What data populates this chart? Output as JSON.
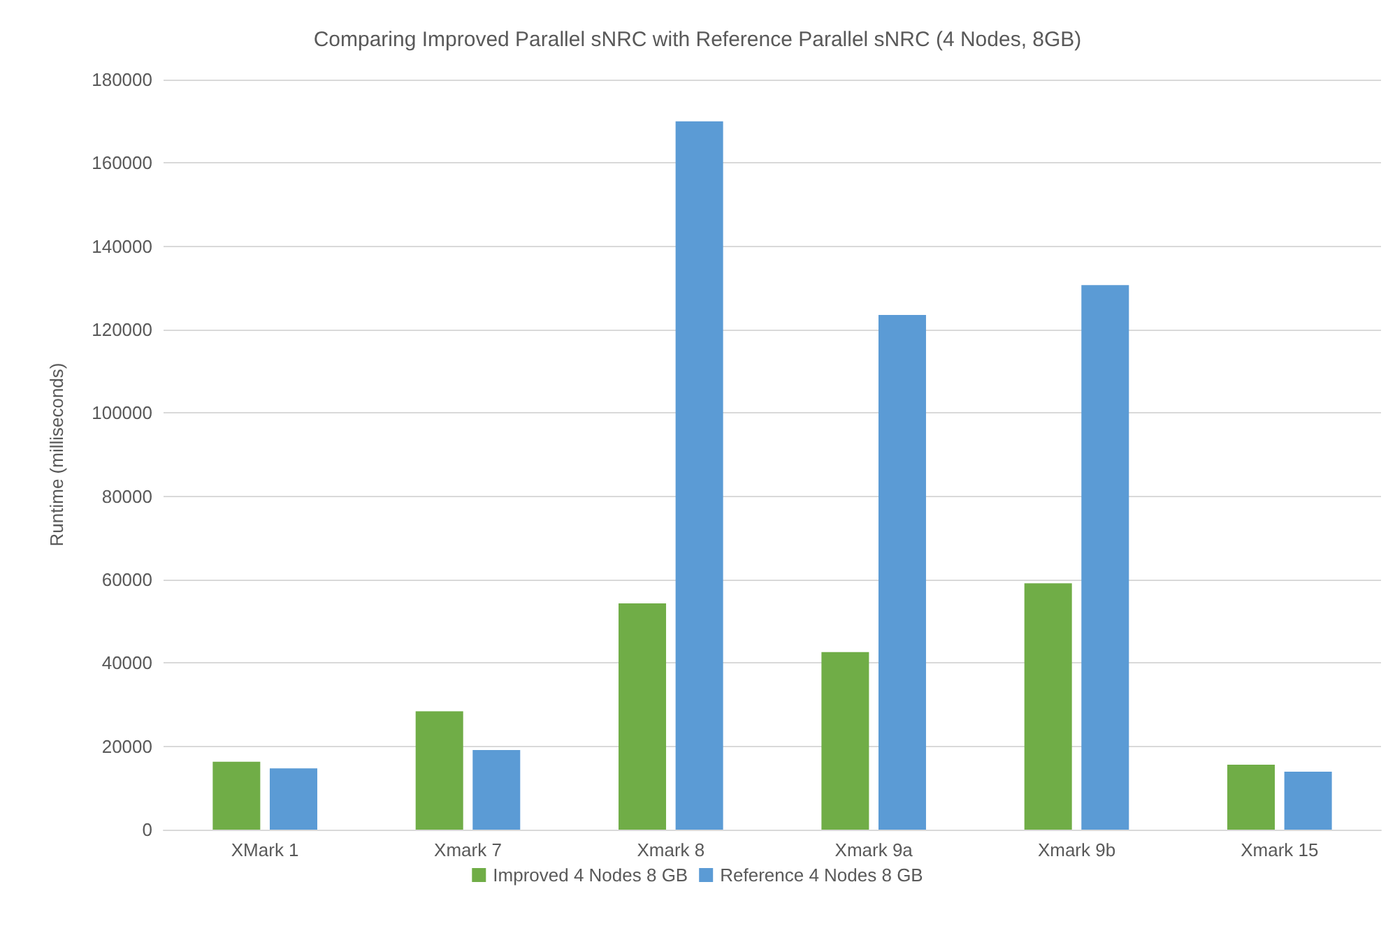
{
  "chart_data": {
    "type": "bar",
    "title": "Comparing Improved Parallel sNRC with Reference Parallel sNRC (4 Nodes, 8GB)",
    "ylabel": "Runtime (milliseconds)",
    "categories": [
      "XMark 1",
      "Xmark 7",
      "Xmark 8",
      "Xmark 9a",
      "Xmark 9b",
      "Xmark 15"
    ],
    "series": [
      {
        "name": "Improved 4 Nodes 8 GB",
        "color": "#70ad47",
        "values": [
          16300,
          28400,
          54300,
          42600,
          59100,
          15600
        ]
      },
      {
        "name": "Reference 4 Nodes 8 GB",
        "color": "#5b9bd5",
        "values": [
          14700,
          19100,
          170000,
          123500,
          130700,
          13900
        ]
      }
    ],
    "ylim": [
      0,
      180000
    ],
    "yticks": [
      0,
      20000,
      40000,
      60000,
      80000,
      100000,
      120000,
      140000,
      160000,
      180000
    ],
    "grid": "y",
    "legend": "bottom"
  }
}
